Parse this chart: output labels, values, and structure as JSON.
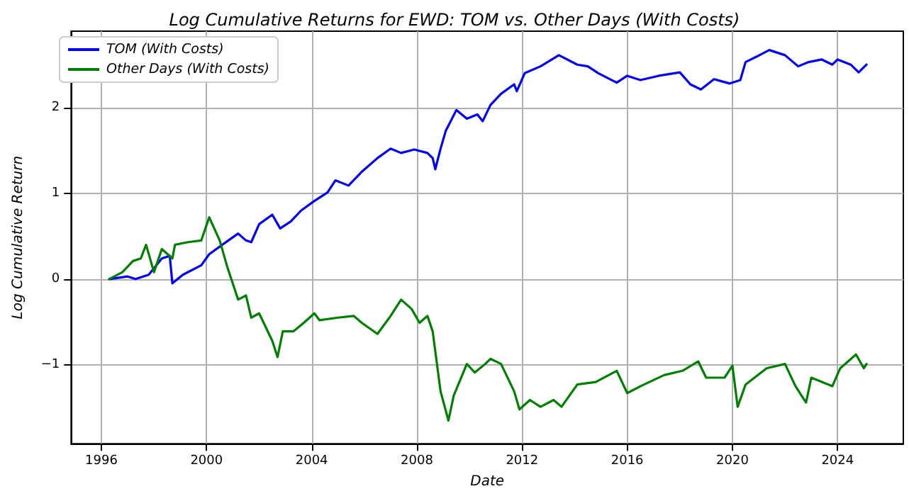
{
  "chart_data": {
    "type": "line",
    "title": "Log Cumulative Returns for EWD: TOM vs. Other Days (With Costs)",
    "xlabel": "Date",
    "ylabel": "Log Cumulative Return",
    "xlim": [
      1994.85,
      2026.5
    ],
    "xticks": [
      1996,
      2000,
      2004,
      2008,
      2012,
      2016,
      2020,
      2024
    ],
    "ylim": [
      -1.92,
      2.89
    ],
    "yticks": [
      -1,
      0,
      1,
      2
    ],
    "grid": true,
    "legend": "top left",
    "series": [
      {
        "name": "TOM (With Costs)",
        "color": "#0000ff",
        "x": [
          1996.3,
          1997.0,
          1997.3,
          1997.8,
          1998.3,
          1998.6,
          1998.7,
          1999.1,
          1999.8,
          2000.1,
          2000.6,
          2001.2,
          2001.5,
          2001.7,
          2002.0,
          2002.5,
          2002.8,
          2003.2,
          2003.6,
          2004.1,
          2004.6,
          2004.9,
          2005.4,
          2005.9,
          2006.5,
          2007.0,
          2007.4,
          2007.9,
          2008.4,
          2008.6,
          2008.7,
          2008.9,
          2009.1,
          2009.5,
          2009.9,
          2010.3,
          2010.5,
          2010.8,
          2011.2,
          2011.7,
          2011.8,
          2012.1,
          2012.7,
          2013.4,
          2014.1,
          2014.5,
          2014.9,
          2015.6,
          2016.0,
          2016.5,
          2017.2,
          2018.0,
          2018.4,
          2018.8,
          2019.3,
          2019.9,
          2020.3,
          2020.5,
          2020.9,
          2021.4,
          2022.0,
          2022.5,
          2022.9,
          2023.4,
          2023.8,
          2024.0,
          2024.5,
          2024.8,
          2025.1
        ],
        "values": [
          0,
          0.03,
          0,
          0.05,
          0.24,
          0.27,
          -0.05,
          0.05,
          0.16,
          0.29,
          0.4,
          0.53,
          0.45,
          0.43,
          0.64,
          0.75,
          0.59,
          0.67,
          0.8,
          0.91,
          1.01,
          1.15,
          1.09,
          1.25,
          1.41,
          1.52,
          1.47,
          1.51,
          1.47,
          1.41,
          1.28,
          1.52,
          1.73,
          1.97,
          1.87,
          1.92,
          1.84,
          2.03,
          2.16,
          2.27,
          2.19,
          2.4,
          2.48,
          2.61,
          2.5,
          2.48,
          2.4,
          2.29,
          2.37,
          2.32,
          2.37,
          2.41,
          2.27,
          2.21,
          2.33,
          2.28,
          2.32,
          2.53,
          2.59,
          2.67,
          2.61,
          2.48,
          2.53,
          2.56,
          2.5,
          2.56,
          2.5,
          2.41,
          2.5
        ]
      },
      {
        "name": "Other Days (With Costs)",
        "color": "#008000",
        "x": [
          1996.3,
          1996.8,
          1997.2,
          1997.5,
          1997.7,
          1998.0,
          1998.3,
          1998.7,
          1998.8,
          1999.3,
          1999.8,
          2000.1,
          2000.5,
          2000.8,
          2001.2,
          2001.5,
          2001.7,
          2002.0,
          2002.5,
          2002.7,
          2002.9,
          2003.3,
          2003.7,
          2004.1,
          2004.3,
          2005.0,
          2005.6,
          2005.9,
          2006.5,
          2007.0,
          2007.4,
          2007.8,
          2008.1,
          2008.4,
          2008.6,
          2008.9,
          2009.2,
          2009.4,
          2009.9,
          2010.2,
          2010.6,
          2010.8,
          2011.2,
          2011.7,
          2011.9,
          2012.3,
          2012.7,
          2013.2,
          2013.5,
          2014.1,
          2014.8,
          2015.6,
          2016.0,
          2016.5,
          2017.4,
          2018.1,
          2018.7,
          2019.0,
          2019.7,
          2020.0,
          2020.2,
          2020.5,
          2021.3,
          2022.0,
          2022.4,
          2022.8,
          2023.0,
          2023.8,
          2024.1,
          2024.7,
          2025.0,
          2025.1
        ],
        "values": [
          0,
          0.08,
          0.21,
          0.24,
          0.4,
          0.08,
          0.35,
          0.24,
          0.4,
          0.43,
          0.45,
          0.72,
          0.45,
          0.13,
          -0.24,
          -0.19,
          -0.45,
          -0.4,
          -0.72,
          -0.91,
          -0.61,
          -0.61,
          -0.51,
          -0.4,
          -0.48,
          -0.45,
          -0.43,
          -0.51,
          -0.64,
          -0.43,
          -0.24,
          -0.35,
          -0.51,
          -0.43,
          -0.61,
          -1.31,
          -1.65,
          -1.36,
          -0.99,
          -1.09,
          -0.99,
          -0.93,
          -0.99,
          -1.31,
          -1.52,
          -1.41,
          -1.49,
          -1.41,
          -1.49,
          -1.23,
          -1.2,
          -1.07,
          -1.33,
          -1.25,
          -1.12,
          -1.07,
          -0.96,
          -1.15,
          -1.15,
          -1.01,
          -1.49,
          -1.23,
          -1.04,
          -0.99,
          -1.25,
          -1.44,
          -1.15,
          -1.25,
          -1.04,
          -0.88,
          -1.04,
          -0.99
        ]
      }
    ]
  }
}
